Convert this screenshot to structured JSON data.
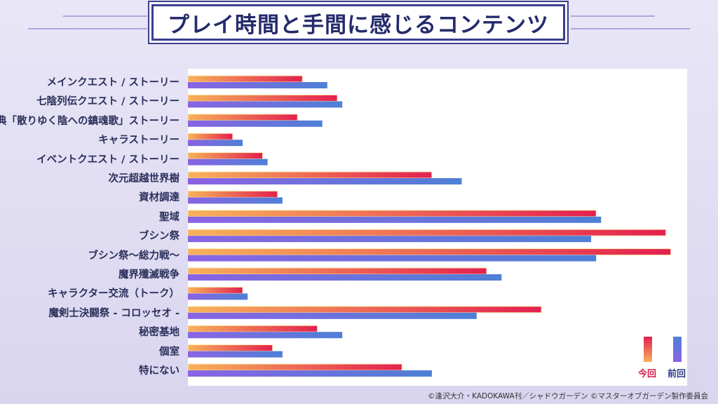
{
  "title": "プレイ時間と手間に感じるコンテンツ",
  "legend": {
    "current": "今回",
    "previous": "前回"
  },
  "colors": {
    "current": "#e3204f",
    "current_glow": "#f7b25a",
    "previous": "#4e80d6",
    "previous_start": "#8a63e3",
    "title_border": "#3a3f8e",
    "title_text": "#242a6b"
  },
  "copyright": "©逢沢大介・KADOKAWA刊／シャドウガーデン  ©マスターオブガーデン製作委員会",
  "chart_data": {
    "type": "bar",
    "orientation": "horizontal",
    "title": "プレイ時間と手間に感じるコンテンツ",
    "categories": [
      "メインクエスト / ストーリー",
      "七陰列伝クエスト / ストーリー",
      "外典「散りゆく陰への鎮魂歌」ストーリー",
      "キャラストーリー",
      "イベントクエスト / ストーリー",
      "次元超越世界樹",
      "資材調達",
      "聖域",
      "ブシン祭",
      "ブシン祭～総力戦～",
      "魔界殲滅戦争",
      "キャラクター交流（トーク）",
      "魔剣士決闘祭 - コロッセオ -",
      "秘密基地",
      "個室",
      "特にない"
    ],
    "series": [
      {
        "name": "今回",
        "values": [
          23,
          30,
          22,
          9,
          15,
          49,
          18,
          82,
          96,
          97,
          60,
          11,
          71,
          26,
          17,
          43
        ]
      },
      {
        "name": "前回",
        "values": [
          28,
          31,
          27,
          11,
          16,
          55,
          19,
          83,
          81,
          82,
          63,
          12,
          58,
          31,
          19,
          49
        ]
      }
    ],
    "xlabel": "",
    "ylabel": "",
    "xlim": [
      0,
      100
    ],
    "grid": false,
    "legend_position": "bottom-right"
  }
}
